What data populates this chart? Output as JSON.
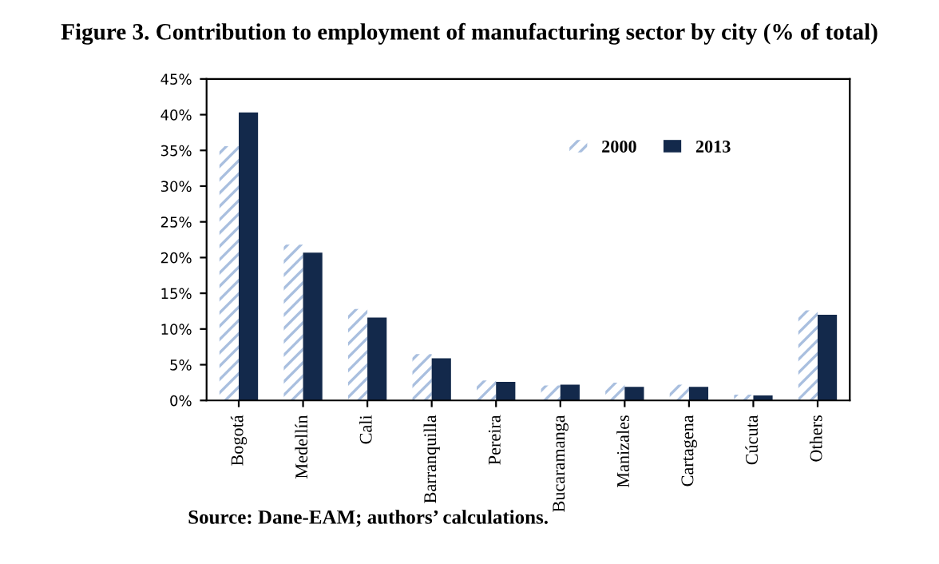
{
  "chart_data": {
    "type": "bar",
    "title": "Figure 3. Contribution to employment of manufacturing sector by city (% of total)",
    "categories": [
      "Bogotá",
      "Medellín",
      "Cali",
      "Barranquilla",
      "Pereira",
      "Bucaramanga",
      "Manizales",
      "Cartagena",
      "Cúcuta",
      "Others"
    ],
    "series": [
      {
        "name": "2000",
        "color": "#a9bfdf",
        "values": [
          35.6,
          21.8,
          12.8,
          6.5,
          2.8,
          2.1,
          2.5,
          2.2,
          0.8,
          12.6
        ]
      },
      {
        "name": "2013",
        "color": "#13294b",
        "values": [
          40.3,
          20.7,
          11.6,
          5.9,
          2.6,
          2.2,
          1.9,
          1.9,
          0.7,
          12.0
        ]
      }
    ],
    "ylim": [
      0,
      45
    ],
    "yticks": [
      {
        "value": 0,
        "label": "0%"
      },
      {
        "value": 5,
        "label": "5%"
      },
      {
        "value": 10,
        "label": "10%"
      },
      {
        "value": 15,
        "label": "15%"
      },
      {
        "value": 20,
        "label": "20%"
      },
      {
        "value": 25,
        "label": "25%"
      },
      {
        "value": 30,
        "label": "30%"
      },
      {
        "value": 35,
        "label": "35%"
      },
      {
        "value": 40,
        "label": "40%"
      },
      {
        "value": 45,
        "label": "45%"
      }
    ],
    "legend": "top right",
    "grid": false,
    "annotations": [
      "Source: Dane-EAM; authors’ calculations."
    ]
  }
}
